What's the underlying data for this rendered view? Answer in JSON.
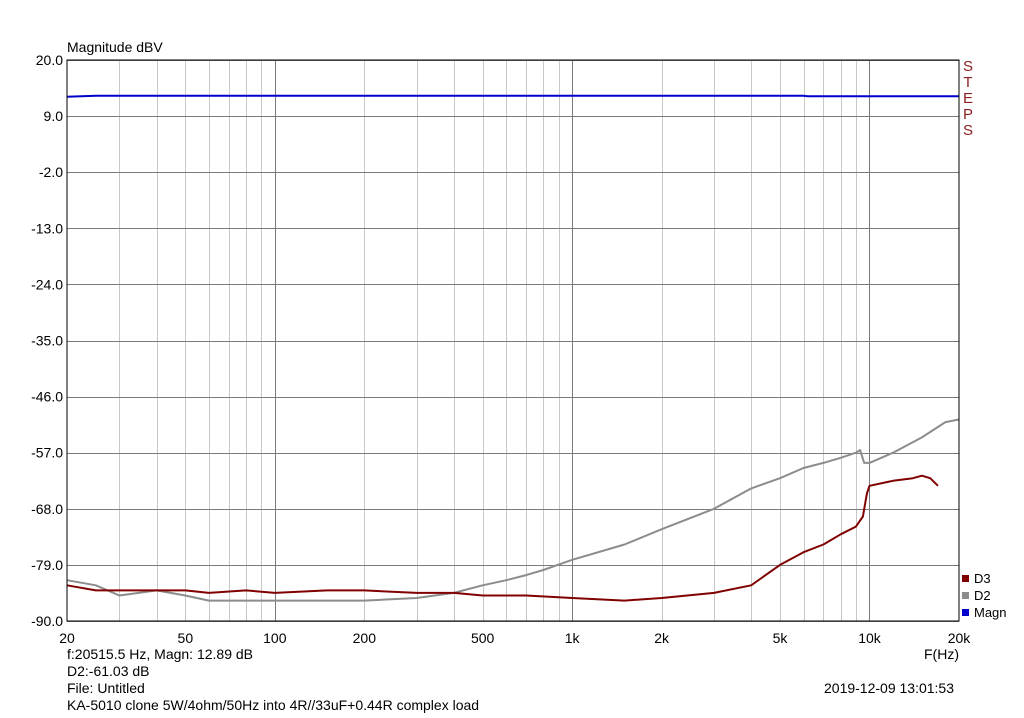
{
  "chart_data": {
    "type": "line",
    "title": "Magnitude dBV",
    "xlabel": "F(Hz)",
    "ylabel": "",
    "x_scale": "log",
    "xlim": [
      20,
      20000
    ],
    "ylim": [
      -90,
      20
    ],
    "y_ticks": [
      20,
      9,
      -2,
      -13,
      -24,
      -35,
      -46,
      -57,
      -68,
      -79,
      -90
    ],
    "y_tick_labels": [
      "20.0",
      "9.0",
      "-2.0",
      "-13.0",
      "-24.0",
      "-35.0",
      "-46.0",
      "-57.0",
      "-68.0",
      "-79.0",
      "-90.0"
    ],
    "x_ticks": [
      20,
      50,
      100,
      200,
      500,
      1000,
      2000,
      5000,
      10000,
      20000
    ],
    "x_tick_labels": [
      "20",
      "50",
      "100",
      "200",
      "500",
      "1k",
      "2k",
      "5k",
      "10k",
      "20k"
    ],
    "grid": true,
    "legend_position": "bottom-right",
    "series": [
      {
        "name": "Magn",
        "color": "#0000cc",
        "points": [
          [
            20,
            12.8
          ],
          [
            25,
            13.0
          ],
          [
            1000,
            13.0
          ],
          [
            6000,
            13.0
          ],
          [
            6200,
            12.9
          ],
          [
            20000,
            12.9
          ]
        ]
      },
      {
        "name": "D2",
        "color": "#8c8c8c",
        "points": [
          [
            20,
            -82
          ],
          [
            25,
            -83
          ],
          [
            30,
            -85
          ],
          [
            40,
            -84
          ],
          [
            50,
            -85
          ],
          [
            60,
            -86
          ],
          [
            80,
            -86
          ],
          [
            100,
            -86
          ],
          [
            130,
            -86
          ],
          [
            200,
            -86
          ],
          [
            300,
            -85.5
          ],
          [
            400,
            -84.5
          ],
          [
            500,
            -83
          ],
          [
            600,
            -82
          ],
          [
            700,
            -81
          ],
          [
            800,
            -80
          ],
          [
            1000,
            -78
          ],
          [
            1500,
            -75
          ],
          [
            2000,
            -72
          ],
          [
            3000,
            -68
          ],
          [
            4000,
            -64
          ],
          [
            5000,
            -62
          ],
          [
            6000,
            -60
          ],
          [
            7000,
            -59
          ],
          [
            8000,
            -58
          ],
          [
            9000,
            -57
          ],
          [
            9300,
            -56.5
          ],
          [
            9600,
            -59
          ],
          [
            10000,
            -59
          ],
          [
            12000,
            -57
          ],
          [
            15000,
            -54
          ],
          [
            18000,
            -51
          ],
          [
            20000,
            -50.5
          ]
        ]
      },
      {
        "name": "D3",
        "color": "#800000",
        "points": [
          [
            20,
            -83
          ],
          [
            25,
            -84
          ],
          [
            30,
            -84
          ],
          [
            40,
            -84
          ],
          [
            50,
            -84
          ],
          [
            60,
            -84.5
          ],
          [
            80,
            -84
          ],
          [
            100,
            -84.5
          ],
          [
            150,
            -84
          ],
          [
            200,
            -84
          ],
          [
            300,
            -84.5
          ],
          [
            400,
            -84.5
          ],
          [
            500,
            -85
          ],
          [
            700,
            -85
          ],
          [
            1000,
            -85.5
          ],
          [
            1500,
            -86
          ],
          [
            2000,
            -85.5
          ],
          [
            3000,
            -84.5
          ],
          [
            4000,
            -83
          ],
          [
            5000,
            -79
          ],
          [
            6000,
            -76.5
          ],
          [
            7000,
            -75
          ],
          [
            8000,
            -73
          ],
          [
            9000,
            -71.5
          ],
          [
            9500,
            -69.5
          ],
          [
            9800,
            -65
          ],
          [
            10000,
            -63.5
          ],
          [
            12000,
            -62.5
          ],
          [
            14000,
            -62
          ],
          [
            15000,
            -61.5
          ],
          [
            16000,
            -62
          ],
          [
            17000,
            -63.5
          ]
        ]
      }
    ],
    "legend": [
      "D3",
      "D2",
      "Magn"
    ],
    "side_label": [
      "S",
      "T",
      "E",
      "P",
      "S"
    ],
    "readout": {
      "cursor": "f:20515.5 Hz, Magn: 12.89 dB",
      "d2": "D2:-61.03 dB",
      "file": "File: Untitled",
      "description": "KA-5010 clone 5W/4ohm/50Hz into 4R//33uF+0.44R complex load",
      "timestamp": "2019-12-09 13:01:53"
    }
  }
}
